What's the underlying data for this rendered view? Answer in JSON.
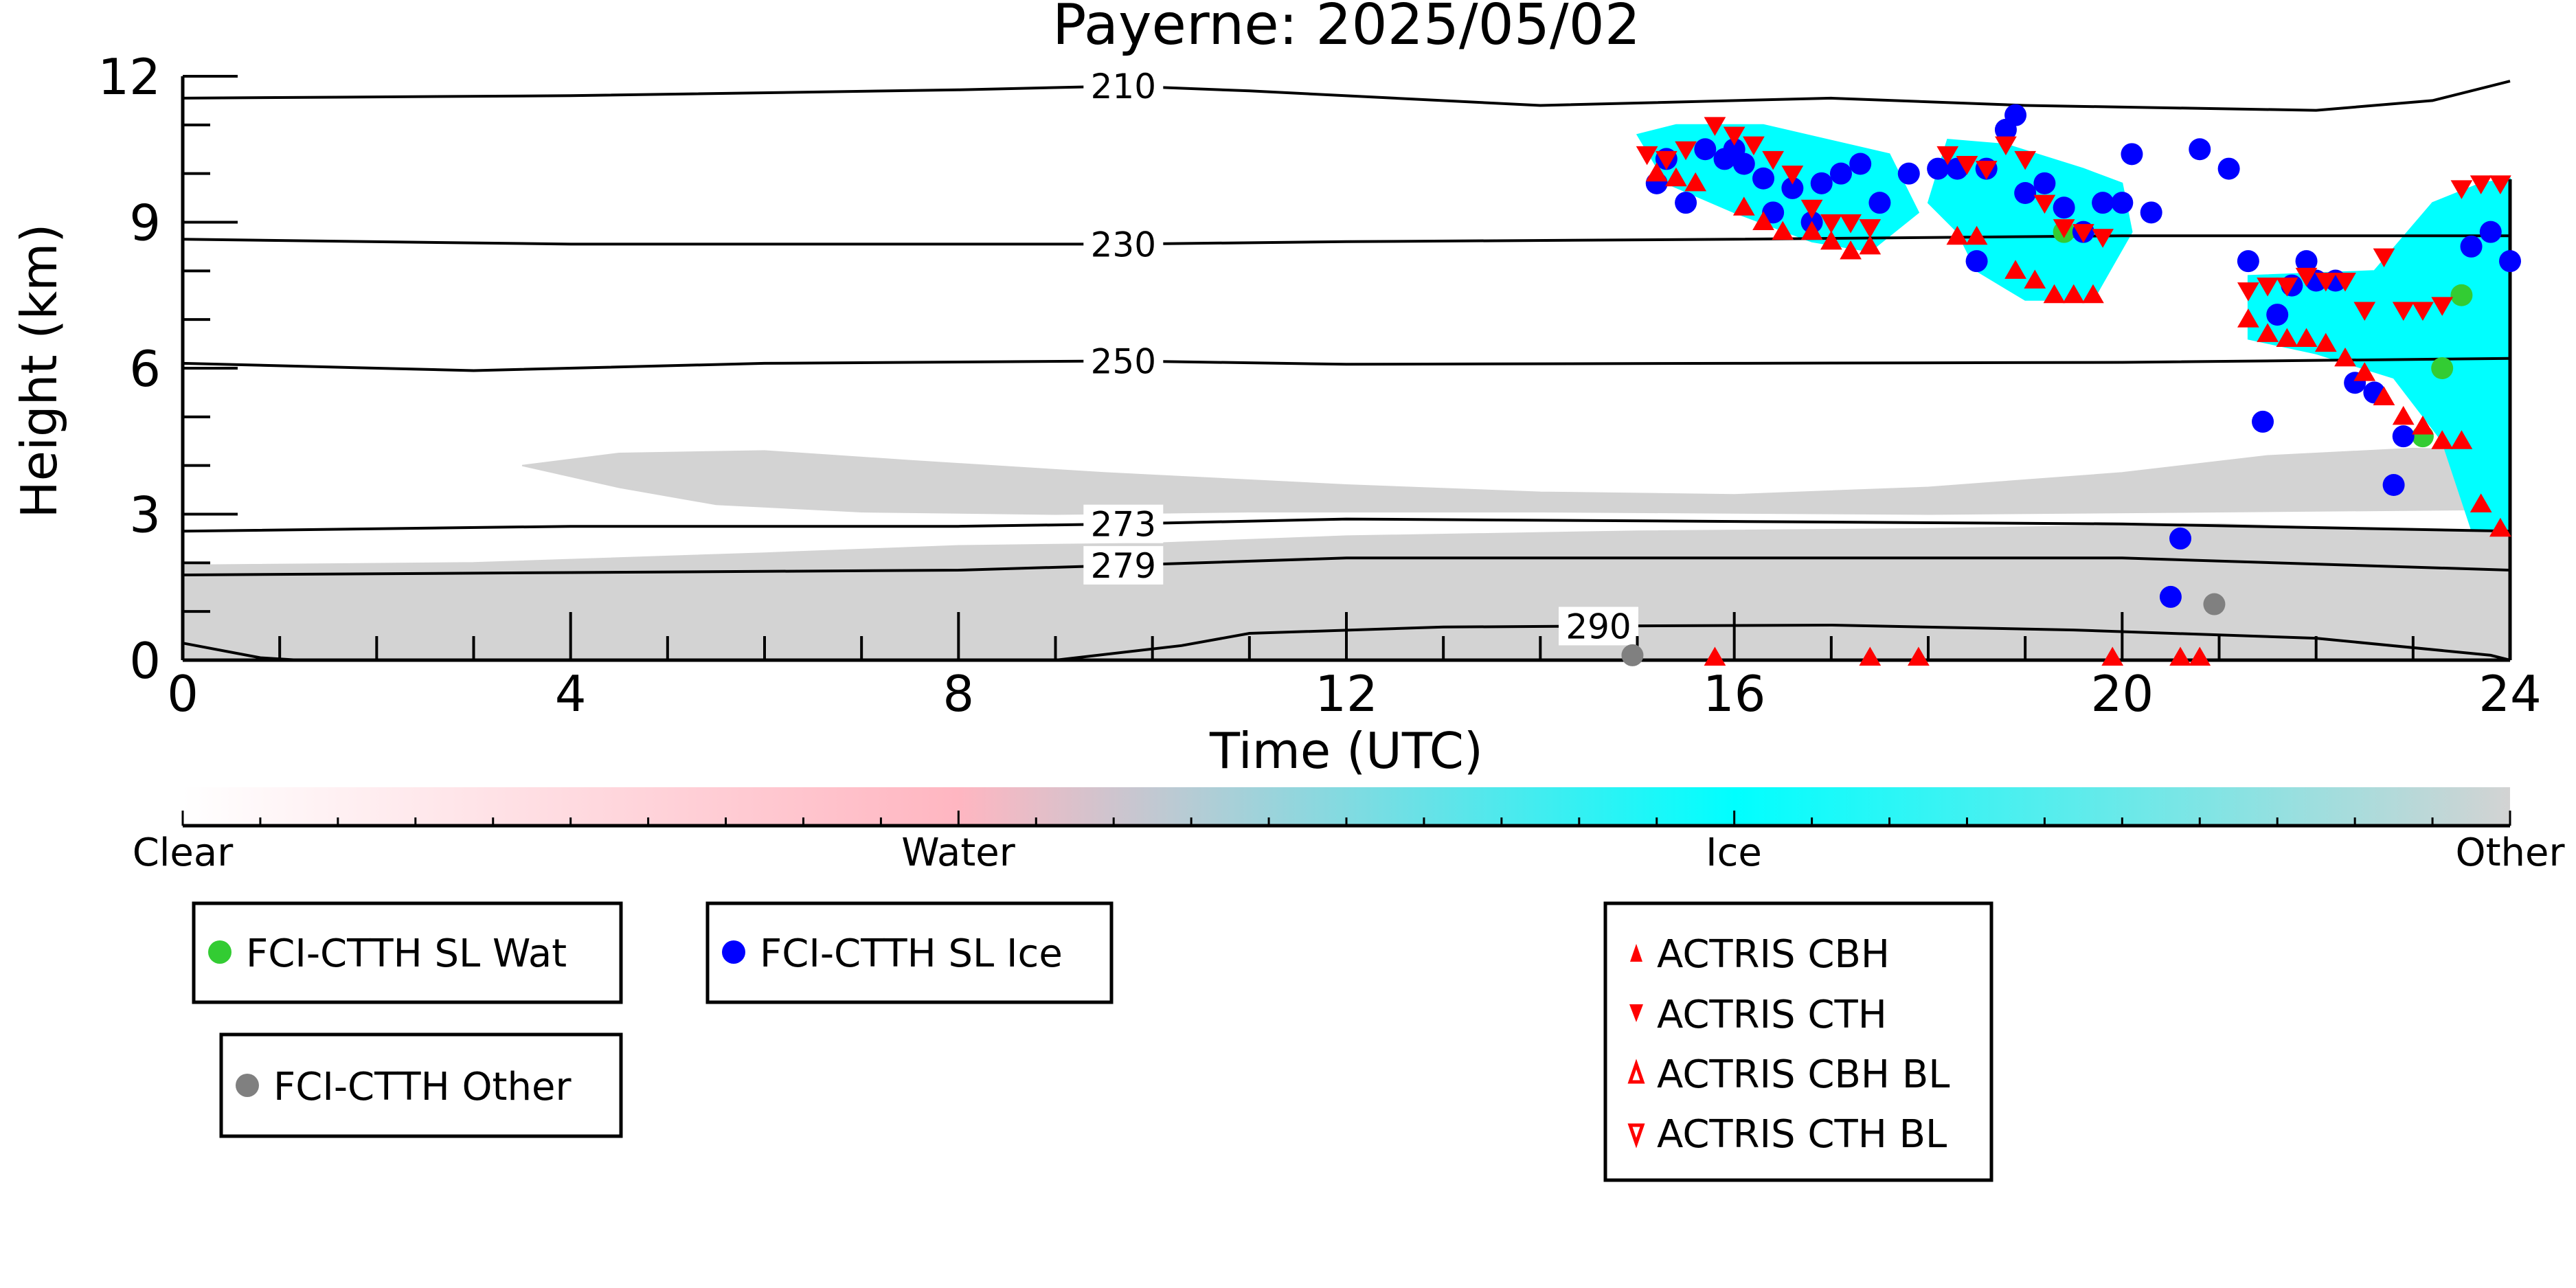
{
  "chart_data": {
    "type": "scatter",
    "title": "Payerne: 2025/05/02",
    "xlabel": "Time (UTC)",
    "ylabel": "Height (km)",
    "xlim": [
      0,
      24
    ],
    "ylim": [
      0,
      12
    ],
    "x_ticks": [
      0,
      4,
      8,
      12,
      16,
      20,
      24
    ],
    "y_ticks": [
      0,
      3,
      6,
      9,
      12
    ],
    "grid": false,
    "colors": {
      "clear": "#ffffff",
      "water": "#ffb6c1",
      "ice": "#00ffff",
      "other": "#d3d3d3",
      "fci_wat": "#33cc33",
      "fci_ice": "#0000ff",
      "fci_other": "#808080",
      "actris": "#ff0000",
      "contour": "#000000"
    },
    "colorbar": {
      "labels": [
        "Clear",
        "Water",
        "Ice",
        "Other"
      ]
    },
    "temperature_contours": [
      {
        "label": "210",
        "label_x": 9.7,
        "points": [
          [
            0,
            11.55
          ],
          [
            4,
            11.6
          ],
          [
            8,
            11.72
          ],
          [
            9.7,
            11.8
          ],
          [
            11,
            11.7
          ],
          [
            14,
            11.4
          ],
          [
            17,
            11.55
          ],
          [
            19,
            11.4
          ],
          [
            22,
            11.3
          ],
          [
            23.2,
            11.5
          ],
          [
            23.8,
            11.8
          ],
          [
            24,
            11.9
          ]
        ]
      },
      {
        "label": "230",
        "label_x": 9.7,
        "points": [
          [
            0,
            8.65
          ],
          [
            4,
            8.55
          ],
          [
            8,
            8.55
          ],
          [
            9.7,
            8.55
          ],
          [
            12,
            8.6
          ],
          [
            16,
            8.65
          ],
          [
            20,
            8.72
          ],
          [
            24,
            8.72
          ]
        ]
      },
      {
        "label": "250",
        "label_x": 9.7,
        "points": [
          [
            0,
            6.1
          ],
          [
            3,
            5.95
          ],
          [
            6,
            6.1
          ],
          [
            9.7,
            6.15
          ],
          [
            12,
            6.08
          ],
          [
            16,
            6.1
          ],
          [
            20,
            6.12
          ],
          [
            24,
            6.2
          ]
        ]
      },
      {
        "label": "273",
        "label_x": 9.7,
        "points": [
          [
            0,
            2.65
          ],
          [
            4,
            2.75
          ],
          [
            8,
            2.75
          ],
          [
            9.7,
            2.8
          ],
          [
            12,
            2.9
          ],
          [
            16,
            2.85
          ],
          [
            20,
            2.8
          ],
          [
            24,
            2.65
          ]
        ]
      },
      {
        "label": "279",
        "label_x": 9.7,
        "points": [
          [
            0,
            1.75
          ],
          [
            4,
            1.8
          ],
          [
            8,
            1.85
          ],
          [
            9.7,
            1.95
          ],
          [
            12,
            2.1
          ],
          [
            16,
            2.1
          ],
          [
            20,
            2.1
          ],
          [
            24,
            1.85
          ]
        ]
      },
      {
        "label": "290",
        "label_x": 14.6,
        "points": [
          [
            0,
            0.35
          ],
          [
            0.8,
            0.05
          ],
          [
            1.2,
            0
          ],
          [
            9,
            0
          ],
          [
            10.3,
            0.3
          ],
          [
            11,
            0.55
          ],
          [
            13,
            0.68
          ],
          [
            14.6,
            0.7
          ],
          [
            17,
            0.72
          ],
          [
            19.5,
            0.62
          ],
          [
            22,
            0.45
          ],
          [
            23.8,
            0.1
          ],
          [
            24,
            0
          ]
        ]
      }
    ],
    "regions": [
      {
        "class": "other",
        "polygon": [
          [
            0,
            0
          ],
          [
            0,
            1.95
          ],
          [
            3,
            2.0
          ],
          [
            6,
            2.2
          ],
          [
            8,
            2.35
          ],
          [
            10,
            2.4
          ],
          [
            12,
            2.55
          ],
          [
            15,
            2.65
          ],
          [
            18,
            2.7
          ],
          [
            21,
            2.8
          ],
          [
            22.5,
            2.7
          ],
          [
            24,
            2.6
          ],
          [
            24,
            0
          ]
        ]
      },
      {
        "class": "other",
        "polygon": [
          [
            3.5,
            4.0
          ],
          [
            4.5,
            4.25
          ],
          [
            6,
            4.3
          ],
          [
            7.5,
            4.1
          ],
          [
            9.5,
            3.85
          ],
          [
            12,
            3.6
          ],
          [
            14,
            3.45
          ],
          [
            16,
            3.4
          ],
          [
            18,
            3.55
          ],
          [
            20,
            3.85
          ],
          [
            21.5,
            4.2
          ],
          [
            23,
            4.35
          ],
          [
            24,
            4.3
          ],
          [
            24,
            3.1
          ],
          [
            21,
            3.05
          ],
          [
            18,
            3.0
          ],
          [
            14,
            3.05
          ],
          [
            11,
            3.05
          ],
          [
            9,
            3.0
          ],
          [
            7,
            3.05
          ],
          [
            5.5,
            3.2
          ],
          [
            4.5,
            3.55
          ]
        ]
      },
      {
        "class": "ice",
        "polygon": [
          [
            15.0,
            10.8
          ],
          [
            15.4,
            11.0
          ],
          [
            16.3,
            11.0
          ],
          [
            17.6,
            10.4
          ],
          [
            17.9,
            9.2
          ],
          [
            17.4,
            8.4
          ],
          [
            16.8,
            8.6
          ],
          [
            16.0,
            9.2
          ],
          [
            15.3,
            9.8
          ]
        ]
      },
      {
        "class": "ice",
        "polygon": [
          [
            18.2,
            10.7
          ],
          [
            18.8,
            10.6
          ],
          [
            19.6,
            10.1
          ],
          [
            20.0,
            9.8
          ],
          [
            20.1,
            8.8
          ],
          [
            19.7,
            7.4
          ],
          [
            19.0,
            7.4
          ],
          [
            18.5,
            8.0
          ],
          [
            18.3,
            8.8
          ],
          [
            18.0,
            9.4
          ]
        ]
      },
      {
        "class": "ice",
        "polygon": [
          [
            21.3,
            7.9
          ],
          [
            22.6,
            8.0
          ],
          [
            23.2,
            9.4
          ],
          [
            23.7,
            9.8
          ],
          [
            24,
            9.9
          ],
          [
            24,
            2.6
          ],
          [
            23.6,
            2.7
          ],
          [
            23.3,
            4.5
          ],
          [
            22.8,
            5.8
          ],
          [
            22.0,
            6.3
          ],
          [
            21.3,
            6.6
          ]
        ]
      }
    ],
    "series": [
      {
        "name": "FCI-CTTH SL Wat",
        "marker": "circle",
        "color": "#33cc33",
        "x": [
          19.4,
          23.1,
          23.3,
          23.5
        ],
        "y": [
          8.8,
          4.6,
          6.0,
          7.5
        ]
      },
      {
        "name": "FCI-CTTH SL Ice",
        "marker": "circle",
        "color": "#0000ff",
        "x": [
          15.2,
          15.3,
          15.5,
          15.7,
          15.9,
          16.0,
          16.1,
          16.3,
          16.4,
          16.6,
          16.8,
          16.9,
          17.1,
          17.3,
          17.5,
          17.8,
          18.1,
          18.3,
          18.5,
          18.6,
          18.8,
          18.9,
          19.0,
          19.2,
          19.4,
          19.6,
          19.8,
          20.0,
          20.1,
          20.3,
          20.5,
          20.6,
          20.8,
          21.1,
          21.3,
          21.45,
          21.6,
          21.75,
          21.9,
          22.0,
          22.2,
          22.4,
          22.6,
          22.8,
          22.9,
          23.6,
          23.8,
          24.0
        ],
        "y": [
          9.8,
          10.3,
          9.4,
          10.5,
          10.3,
          10.5,
          10.2,
          9.9,
          9.2,
          9.7,
          9.0,
          9.8,
          10.0,
          10.2,
          9.4,
          10.0,
          10.1,
          10.1,
          8.2,
          10.1,
          10.9,
          11.2,
          9.6,
          9.8,
          9.3,
          8.8,
          9.4,
          9.4,
          10.4,
          9.2,
          1.3,
          2.5,
          10.5,
          10.1,
          8.2,
          4.9,
          7.1,
          7.7,
          8.2,
          7.8,
          7.8,
          5.7,
          5.5,
          3.6,
          4.6,
          8.5,
          8.8,
          8.2
        ]
      },
      {
        "name": "FCI-CTTH Other",
        "marker": "circle",
        "color": "#808080",
        "x": [
          14.95,
          20.95
        ],
        "y": [
          0.1,
          1.15
        ]
      },
      {
        "name": "ACTRIS CBH",
        "marker": "triangle-up",
        "color": "#ff0000",
        "x": [
          15.2,
          15.4,
          15.6,
          16.1,
          16.3,
          16.5,
          16.8,
          17.0,
          17.2,
          17.4,
          18.3,
          18.5,
          18.9,
          19.1,
          19.3,
          19.5,
          19.7,
          21.3,
          21.5,
          21.7,
          21.9,
          22.1,
          22.3,
          22.5,
          22.7,
          22.9,
          23.1,
          23.3,
          23.5,
          23.7,
          23.9,
          15.8,
          17.4,
          17.9,
          19.9,
          20.6,
          20.8
        ],
        "y": [
          10.0,
          9.9,
          9.8,
          9.3,
          9.0,
          8.8,
          8.8,
          8.6,
          8.4,
          8.5,
          8.7,
          8.7,
          8.0,
          7.8,
          7.5,
          7.5,
          7.5,
          7.0,
          6.7,
          6.6,
          6.6,
          6.5,
          6.2,
          5.9,
          5.4,
          5.0,
          4.8,
          4.5,
          4.5,
          3.2,
          2.7,
          0.05,
          0.05,
          0.05,
          0.05,
          0.05,
          0.05
        ]
      },
      {
        "name": "ACTRIS CTH",
        "marker": "triangle-down",
        "color": "#ff0000",
        "x": [
          15.1,
          15.3,
          15.5,
          15.8,
          16.0,
          16.2,
          16.4,
          16.6,
          16.8,
          17.0,
          17.2,
          17.4,
          18.2,
          18.4,
          18.6,
          18.8,
          19.0,
          19.2,
          19.4,
          19.6,
          19.8,
          21.3,
          21.5,
          21.7,
          21.9,
          22.1,
          22.3,
          22.5,
          22.7,
          22.9,
          23.1,
          23.3,
          23.5,
          23.7,
          23.9
        ],
        "y": [
          10.4,
          10.3,
          10.5,
          11.0,
          10.8,
          10.6,
          10.3,
          10.0,
          9.3,
          9.0,
          9.0,
          8.9,
          10.4,
          10.2,
          10.1,
          10.6,
          10.3,
          9.4,
          8.9,
          8.8,
          8.7,
          7.6,
          7.7,
          7.7,
          7.9,
          7.8,
          7.8,
          7.2,
          8.3,
          7.2,
          7.2,
          7.3,
          9.7,
          9.8,
          9.8
        ]
      },
      {
        "name": "ACTRIS CBH BL",
        "marker": "triangle-up-open",
        "color": "#ff0000",
        "x": [],
        "y": []
      },
      {
        "name": "ACTRIS CTH BL",
        "marker": "triangle-down-open",
        "color": "#ff0000",
        "x": [],
        "y": []
      }
    ]
  }
}
